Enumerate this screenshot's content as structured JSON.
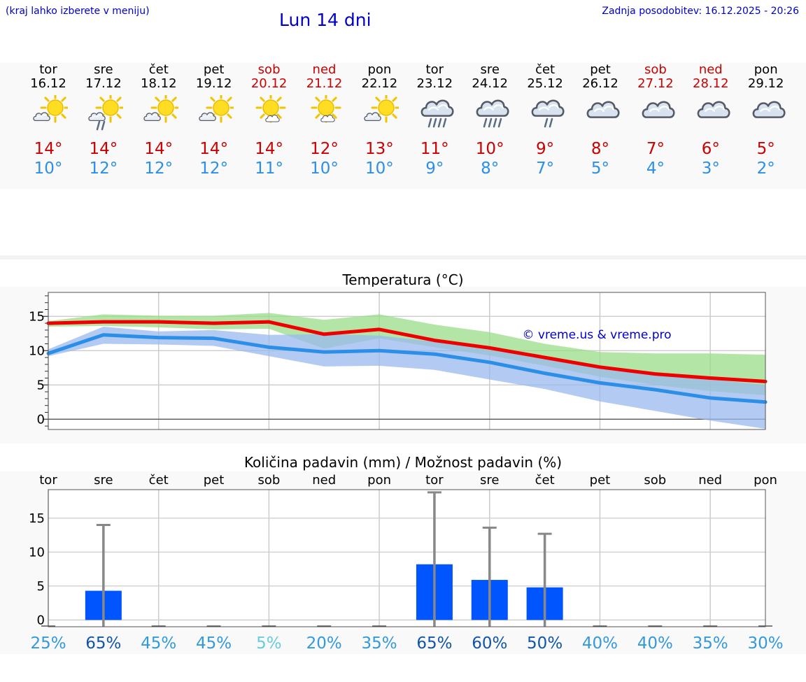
{
  "header": {
    "hint": "(kraj lahko izberete v meniju)",
    "title": "Lun 14 dni",
    "updated": "Zadnja posodobitev: 16.12.2025 - 20:26"
  },
  "forecast": [
    {
      "day": "tor",
      "date": "16.12",
      "icon": "partly-sunny-icon",
      "hi": "14°",
      "lo": "10°",
      "weekend": false
    },
    {
      "day": "sre",
      "date": "17.12",
      "icon": "sun-cloud-light-rain-icon",
      "hi": "14°",
      "lo": "12°",
      "weekend": false
    },
    {
      "day": "čet",
      "date": "18.12",
      "icon": "partly-sunny-icon",
      "hi": "14°",
      "lo": "12°",
      "weekend": false
    },
    {
      "day": "pet",
      "date": "19.12",
      "icon": "partly-sunny-icon",
      "hi": "14°",
      "lo": "12°",
      "weekend": false
    },
    {
      "day": "sob",
      "date": "20.12",
      "icon": "sun-small-cloud-icon",
      "hi": "14°",
      "lo": "11°",
      "weekend": true
    },
    {
      "day": "ned",
      "date": "21.12",
      "icon": "sun-small-cloud-icon",
      "hi": "12°",
      "lo": "10°",
      "weekend": true
    },
    {
      "day": "pon",
      "date": "22.12",
      "icon": "partly-sunny-icon",
      "hi": "13°",
      "lo": "10°",
      "weekend": false
    },
    {
      "day": "tor",
      "date": "23.12",
      "icon": "cloud-rain-icon",
      "hi": "11°",
      "lo": "9°",
      "weekend": false
    },
    {
      "day": "sre",
      "date": "24.12",
      "icon": "cloud-rain-icon",
      "hi": "10°",
      "lo": "8°",
      "weekend": false
    },
    {
      "day": "čet",
      "date": "25.12",
      "icon": "cloud-light-rain-icon",
      "hi": "9°",
      "lo": "7°",
      "weekend": false
    },
    {
      "day": "pet",
      "date": "26.12",
      "icon": "cloudy-icon",
      "hi": "8°",
      "lo": "5°",
      "weekend": false
    },
    {
      "day": "sob",
      "date": "27.12",
      "icon": "cloudy-icon",
      "hi": "7°",
      "lo": "4°",
      "weekend": true
    },
    {
      "day": "ned",
      "date": "28.12",
      "icon": "cloudy-icon",
      "hi": "6°",
      "lo": "3°",
      "weekend": true
    },
    {
      "day": "pon",
      "date": "29.12",
      "icon": "cloudy-icon",
      "hi": "5°",
      "lo": "2°",
      "weekend": false
    }
  ],
  "chart_data": [
    {
      "type": "line",
      "title": "Temperatura (°C)",
      "watermark": "© vreme.us & vreme.pro",
      "xlabel": "",
      "ylabel": "",
      "ylim": [
        -1.5,
        18.5
      ],
      "yticks": [
        0,
        5,
        10,
        15
      ],
      "x": [
        0,
        1,
        2,
        3,
        4,
        5,
        6,
        7,
        8,
        9,
        10,
        11,
        12,
        13
      ],
      "series": [
        {
          "name": "max",
          "color": "#ee0000",
          "values": [
            14.0,
            14.2,
            14.2,
            14.0,
            14.2,
            12.4,
            13.1,
            11.5,
            10.4,
            9.0,
            7.6,
            6.6,
            6.0,
            5.5
          ]
        },
        {
          "name": "min",
          "color": "#2b8fe8",
          "values": [
            9.6,
            12.3,
            11.9,
            11.8,
            10.5,
            9.8,
            10.0,
            9.5,
            8.3,
            6.7,
            5.3,
            4.3,
            3.1,
            2.5
          ]
        }
      ],
      "bands": [
        {
          "name": "max-range",
          "color": "#99dd88",
          "low": [
            13.5,
            13.6,
            13.4,
            13.1,
            13.2,
            10.3,
            11.8,
            10.5,
            9.3,
            7.8,
            6.2,
            5.0,
            4.1,
            3.5
          ],
          "high": [
            14.3,
            15.3,
            15.1,
            15.1,
            15.5,
            14.5,
            15.3,
            13.8,
            12.7,
            11.0,
            9.8,
            9.6,
            9.6,
            9.4
          ]
        },
        {
          "name": "min-range",
          "color": "#99b8ee",
          "low": [
            9.2,
            11.0,
            10.9,
            10.7,
            9.2,
            7.7,
            7.8,
            7.2,
            5.8,
            4.4,
            2.6,
            1.2,
            -0.2,
            -1.4
          ],
          "high": [
            10.2,
            13.5,
            12.8,
            13.0,
            12.3,
            12.4,
            12.2,
            11.3,
            10.1,
            9.0,
            7.8,
            6.7,
            5.8,
            5.0
          ]
        }
      ]
    },
    {
      "type": "bar",
      "title": "Količina padavin (mm) / Možnost padavin (%)",
      "categories": [
        "tor",
        "sre",
        "čet",
        "pet",
        "sob",
        "ned",
        "pon",
        "tor",
        "sre",
        "čet",
        "pet",
        "sob",
        "ned",
        "pon"
      ],
      "ylim": [
        -1,
        19.2
      ],
      "yticks": [
        0,
        5,
        10,
        15
      ],
      "series": [
        {
          "name": "Količina padavin (mm)",
          "color": "#0055ff",
          "values": [
            0,
            4.3,
            0,
            0,
            0,
            0,
            0,
            8.2,
            5.9,
            4.8,
            0,
            0,
            0,
            0
          ]
        },
        {
          "name": "Največ (mm)",
          "color": "#888888",
          "values": [
            0,
            14.0,
            0,
            0,
            0,
            0,
            0,
            18.8,
            13.6,
            12.7,
            0,
            0,
            0,
            0
          ]
        }
      ],
      "chance": [
        {
          "label": "25%",
          "color": "#3399dd"
        },
        {
          "label": "65%",
          "color": "#1155aa"
        },
        {
          "label": "45%",
          "color": "#3399dd"
        },
        {
          "label": "45%",
          "color": "#3399dd"
        },
        {
          "label": "5%",
          "color": "#66ccdd"
        },
        {
          "label": "20%",
          "color": "#3399dd"
        },
        {
          "label": "35%",
          "color": "#3399dd"
        },
        {
          "label": "65%",
          "color": "#1155aa"
        },
        {
          "label": "60%",
          "color": "#1155aa"
        },
        {
          "label": "50%",
          "color": "#1155aa"
        },
        {
          "label": "40%",
          "color": "#3399dd"
        },
        {
          "label": "40%",
          "color": "#3399dd"
        },
        {
          "label": "35%",
          "color": "#3399dd"
        },
        {
          "label": "30%",
          "color": "#3399dd"
        }
      ]
    }
  ]
}
